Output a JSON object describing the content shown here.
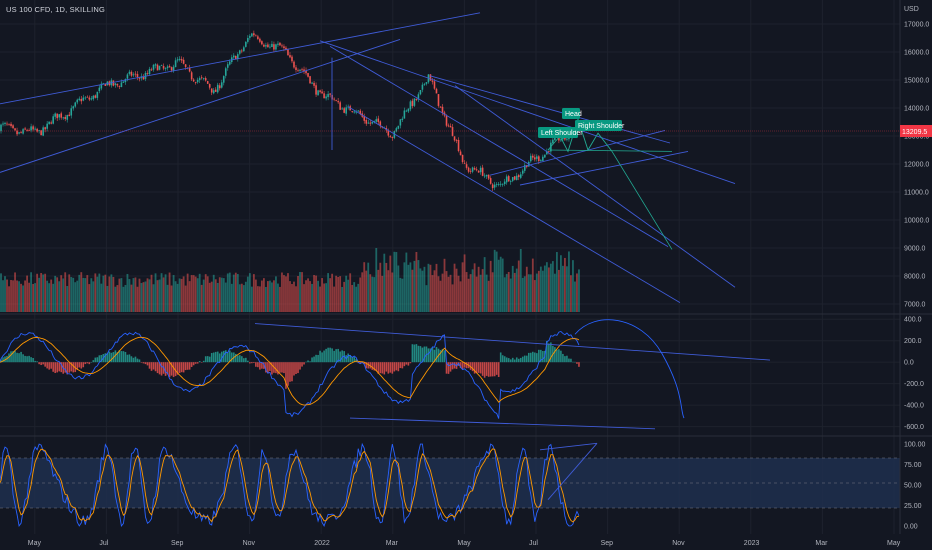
{
  "header": {
    "symbol": "US 100 CFD, 1D, SKILLING",
    "currency": "USD"
  },
  "last_price": {
    "label": "13209.5",
    "value": 13209.5
  },
  "annotations": {
    "head": "Head",
    "left_shoulder": "Left Shoulder",
    "right_shoulder": "Right Shoulder"
  },
  "colors": {
    "up": "#26a69a",
    "down": "#ef5350",
    "line": "#3f5bd6",
    "macd": "#2962ff",
    "signal": "#ff9800",
    "label_bg": "#089981",
    "price_tag": "#f23645",
    "band": "#1e3556"
  },
  "chart_data": [
    {
      "type": "candlestick",
      "title": "US 100 CFD, 1D, SKILLING",
      "x": [
        "May",
        "Jul",
        "Sep",
        "Nov",
        "2022",
        "Mar",
        "May",
        "Jul",
        "Sep",
        "Nov",
        "2023",
        "Mar",
        "May"
      ],
      "ylim": [
        6500,
        17500
      ],
      "y_ticks": [
        "17000.0",
        "16000.0",
        "15000.0",
        "14000.0",
        "13000.0",
        "12000.0",
        "11000.0",
        "10000.0",
        "9000.0",
        "8000.0",
        "7000.0"
      ],
      "approx_close_path": [
        {
          "x": "Apr 2021",
          "y": 13300
        },
        {
          "x": "May 2021",
          "y": 13100
        },
        {
          "x": "Jul 2021",
          "y": 14800
        },
        {
          "x": "Sep 2021",
          "y": 15600
        },
        {
          "x": "Oct 2021",
          "y": 14600
        },
        {
          "x": "Nov 2021",
          "y": 16600
        },
        {
          "x": "Dec 2021",
          "y": 16000
        },
        {
          "x": "Jan 2022",
          "y": 14500
        },
        {
          "x": "Mar 2022",
          "y": 13100
        },
        {
          "x": "Apr 2022",
          "y": 15100
        },
        {
          "x": "May 2022",
          "y": 12000
        },
        {
          "x": "Jun 2022",
          "y": 11200
        },
        {
          "x": "Aug 2022",
          "y": 13200
        }
      ]
    },
    {
      "type": "bar",
      "title": "Volume",
      "note": "per-bar volume histogram under price panel"
    },
    {
      "type": "line",
      "title": "MACD",
      "y_ticks": [
        "400.0",
        "200.0",
        "0.0",
        "-200.0",
        "-400.0",
        "-600.0"
      ],
      "ylim": [
        -650,
        430
      ]
    },
    {
      "type": "line",
      "title": "Stochastic",
      "y_ticks": [
        "100.00",
        "75.00",
        "50.00",
        "25.00",
        "0.00"
      ],
      "ylim": [
        -5,
        105
      ],
      "band": [
        20,
        80
      ]
    }
  ]
}
